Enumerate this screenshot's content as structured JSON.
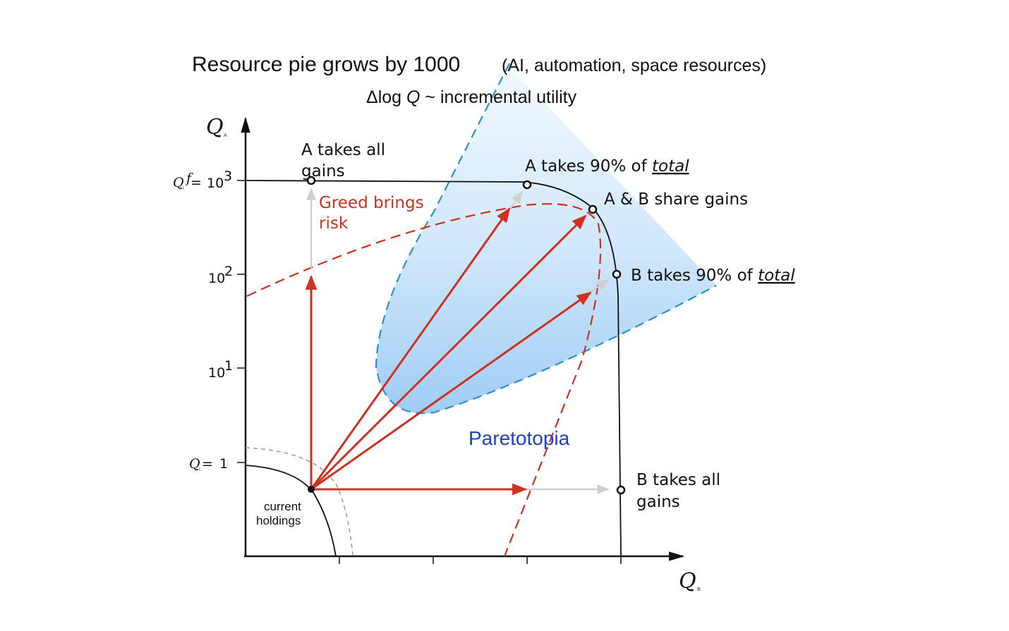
{
  "title": "Resource pie grows by 1000",
  "title_paren": "(AI, automation, space resources)",
  "subtitle_prefix": "Δlog ",
  "subtitle_var": "Q",
  "subtitle_suffix": " ~ incremental utility",
  "axes": {
    "y_label": "Q",
    "y_sub": "A",
    "x_label": "Q",
    "x_sub": "B",
    "y_ticks": [
      {
        "base": "10",
        "exp": "3",
        "prefix_var": "Q",
        "prefix_sub": "i",
        "prefix_mark": "f",
        "prefix_eq": " = "
      },
      {
        "base": "10",
        "exp": "2"
      },
      {
        "base": "10",
        "exp": "1"
      },
      {
        "prefix_var": "Q",
        "prefix_sub": "i",
        "prefix_eq": " = ",
        "value": "1"
      }
    ]
  },
  "labels": {
    "a_all_line1": "A takes all",
    "a_all_line2": "gains",
    "a90_prefix": "A takes 90% of ",
    "a90_total": "total",
    "share": "A & B share gains",
    "b90_prefix": "B takes 90% of ",
    "b90_total": "total",
    "b_all_line1": "B takes all",
    "b_all_line2": "gains",
    "greed_line1": "Greed brings",
    "greed_line2": "risk",
    "paretotopia": "Paretotopia",
    "current_line1": "current",
    "current_line2": "holdings"
  },
  "colors": {
    "red": "#d0301f",
    "blue_dash": "#2a8fd8",
    "region_top": "#eef6fd",
    "region_bottom": "#a9d3f7",
    "paretotopia": "#2040c8",
    "gray_arrow": "#cfcfcf",
    "axis": "#111111"
  }
}
